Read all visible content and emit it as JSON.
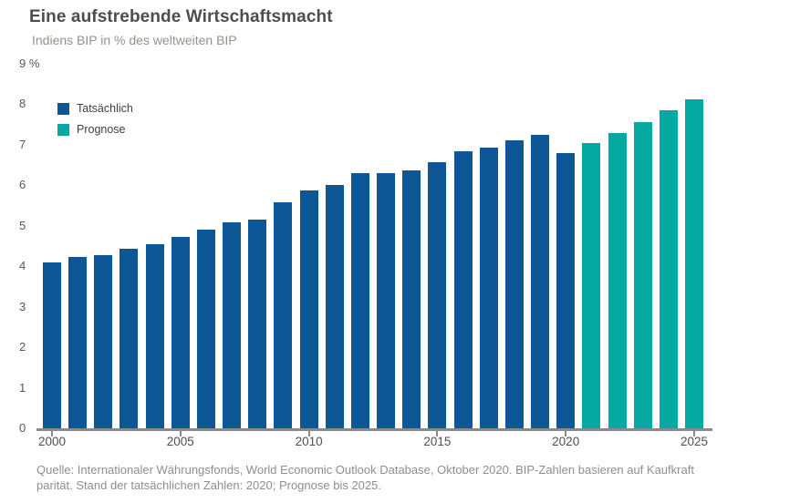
{
  "header": {
    "title": "Eine aufstrebende Wirtschaftsmacht",
    "subtitle": "Indiens BIP in % des weltweiten BIP"
  },
  "chart_data": {
    "type": "bar",
    "title": "Eine aufstrebende Wirtschaftsmacht",
    "subtitle": "Indiens BIP in % des weltweiten BIP",
    "categories": [
      2000,
      2001,
      2002,
      2003,
      2004,
      2005,
      2006,
      2007,
      2008,
      2009,
      2010,
      2011,
      2012,
      2013,
      2014,
      2015,
      2016,
      2017,
      2018,
      2019,
      2020,
      2021,
      2022,
      2023,
      2024,
      2025
    ],
    "series": [
      {
        "name": "Tatsächlich",
        "color": "#0e5796",
        "values": [
          4.1,
          4.24,
          4.28,
          4.43,
          4.54,
          4.72,
          4.9,
          5.09,
          5.15,
          5.57,
          5.88,
          6.0,
          6.29,
          6.29,
          6.36,
          6.56,
          6.84,
          6.93,
          7.11,
          7.24,
          6.8,
          null,
          null,
          null,
          null,
          null
        ]
      },
      {
        "name": "Prognose",
        "color": "#06a8a2",
        "values": [
          null,
          null,
          null,
          null,
          null,
          null,
          null,
          null,
          null,
          null,
          null,
          null,
          null,
          null,
          null,
          null,
          null,
          null,
          null,
          null,
          null,
          7.04,
          7.29,
          7.56,
          7.86,
          8.12
        ]
      }
    ],
    "ylabel": "%",
    "ylim": [
      0,
      9
    ],
    "y_ticks": [
      0,
      1,
      2,
      3,
      4,
      5,
      6,
      7,
      8,
      9
    ],
    "y_tick_labels": [
      "0",
      "1",
      "2",
      "3",
      "4",
      "5",
      "6",
      "7",
      "8",
      "9 %"
    ],
    "x_ticks": [
      2000,
      2005,
      2010,
      2015,
      2020,
      2025
    ],
    "grid": false,
    "legend_position": "upper-left-inside",
    "axis_color": "#8a8a8a"
  },
  "source": {
    "line1": "Quelle: Internationaler Währungsfonds, World Economic Outlook Database, Oktober 2020. BIP-Zahlen basieren auf Kaufkraft",
    "line2": "parität. Stand der tatsächlichen Zahlen: 2020; Prognose bis 2025."
  }
}
